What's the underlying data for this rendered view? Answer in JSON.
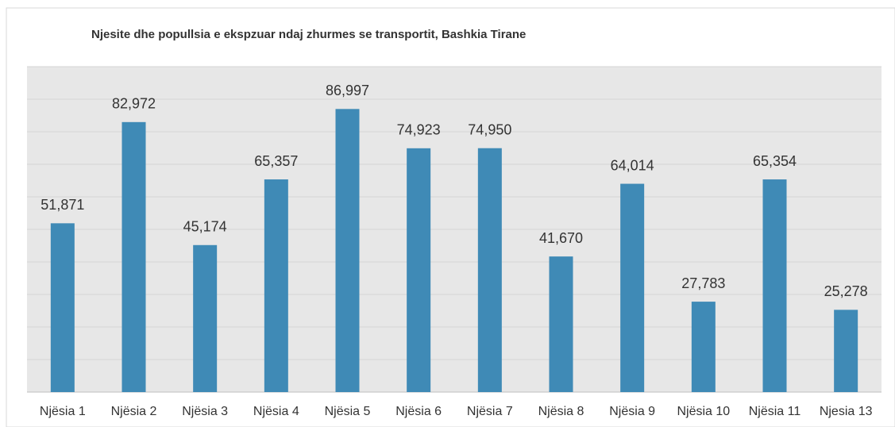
{
  "chart_data": {
    "type": "bar",
    "title": "Njesite dhe popullsia e ekspzuar ndaj zhurmes se transportit, Bashkia Tirane",
    "categories": [
      "Njësia 1",
      "Njësia 2",
      "Njësia 3",
      "Njësia 4",
      "Njësia 5",
      "Njësia 6",
      "Njësia 7",
      "Njësia 8",
      "Njësia 9",
      "Njësia 10",
      "Njësia 11",
      "Njesia 13"
    ],
    "values": [
      51871,
      82972,
      45174,
      65357,
      86997,
      74923,
      74950,
      41670,
      64014,
      27783,
      65354,
      25278
    ],
    "value_labels": [
      "51,871",
      "82,972",
      "45,174",
      "65,357",
      "86,997",
      "74,923",
      "74,950",
      "41,670",
      "64,014",
      "27,783",
      "65,354",
      "25,278"
    ],
    "color": "#3f8ab6",
    "ylim": [
      0,
      100000
    ],
    "yticks": [
      0,
      10000,
      20000,
      30000,
      40000,
      50000,
      60000,
      70000,
      80000,
      90000,
      100000
    ],
    "grid": true
  }
}
